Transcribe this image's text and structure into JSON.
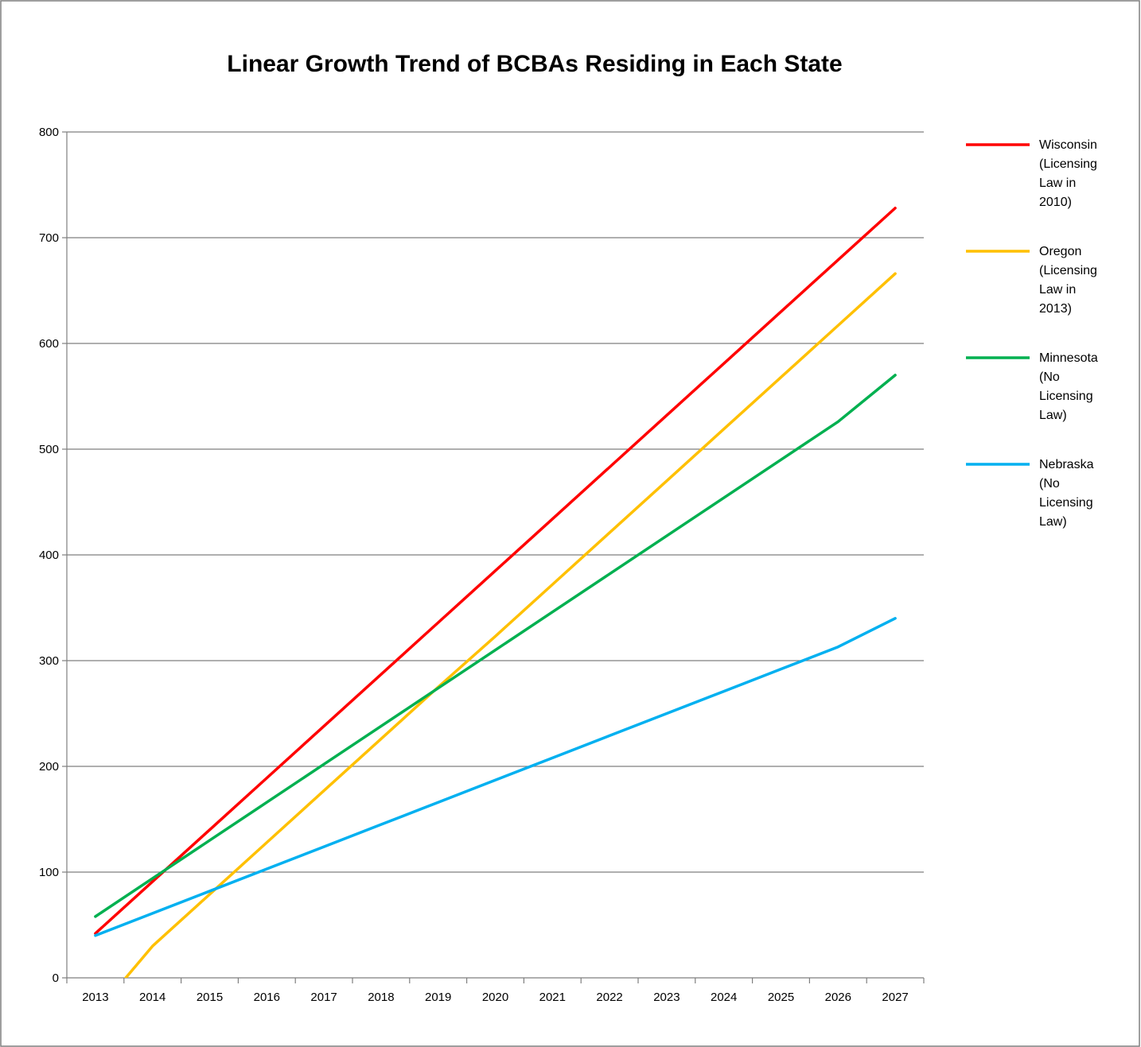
{
  "chart_data": {
    "type": "line",
    "title": "Linear Growth Trend of BCBAs Residing in Each State",
    "xlabel": "",
    "ylabel": "",
    "categories": [
      "2013",
      "2014",
      "2015",
      "2016",
      "2017",
      "2018",
      "2019",
      "2020",
      "2021",
      "2022",
      "2023",
      "2024",
      "2025",
      "2026",
      "2027"
    ],
    "ylim": [
      0,
      800
    ],
    "yticks": [
      "0",
      "100",
      "200",
      "300",
      "400",
      "500",
      "600",
      "700",
      "800"
    ],
    "grid": "horizontal",
    "legend_position": "right",
    "series": [
      {
        "name": "Wisconsin (Licensing Law in 2010)",
        "legend_lines": [
          "Wisconsin",
          "(Licensing",
          "Law in",
          "2010)"
        ],
        "color": "#ff0000",
        "values": [
          42,
          91,
          140,
          189,
          238,
          287,
          336,
          385,
          434,
          483,
          532,
          581,
          630,
          679,
          728
        ]
      },
      {
        "name": "Oregon (Licensing Law in 2013)",
        "legend_lines": [
          "Oregon",
          "(Licensing",
          "Law in",
          "2013)"
        ],
        "color": "#ffc000",
        "values": [
          -34,
          30,
          79,
          128,
          177,
          226,
          275,
          323,
          372,
          421,
          470,
          519,
          568,
          617,
          666
        ]
      },
      {
        "name": "Minnesota (No Licensing Law)",
        "legend_lines": [
          "Minnesota",
          "(No",
          "Licensing",
          "Law)"
        ],
        "color": "#00b050",
        "values": [
          58,
          94,
          130,
          166,
          202,
          238,
          274,
          310,
          346,
          382,
          418,
          454,
          490,
          526,
          570
        ]
      },
      {
        "name": "Nebraska (No Licensing Law)",
        "legend_lines": [
          "Nebraska",
          "(No",
          "Licensing",
          "Law)"
        ],
        "color": "#00b0f0",
        "values": [
          40,
          61,
          82,
          103,
          124,
          145,
          166,
          187,
          208,
          229,
          250,
          271,
          292,
          313,
          340
        ]
      }
    ]
  }
}
